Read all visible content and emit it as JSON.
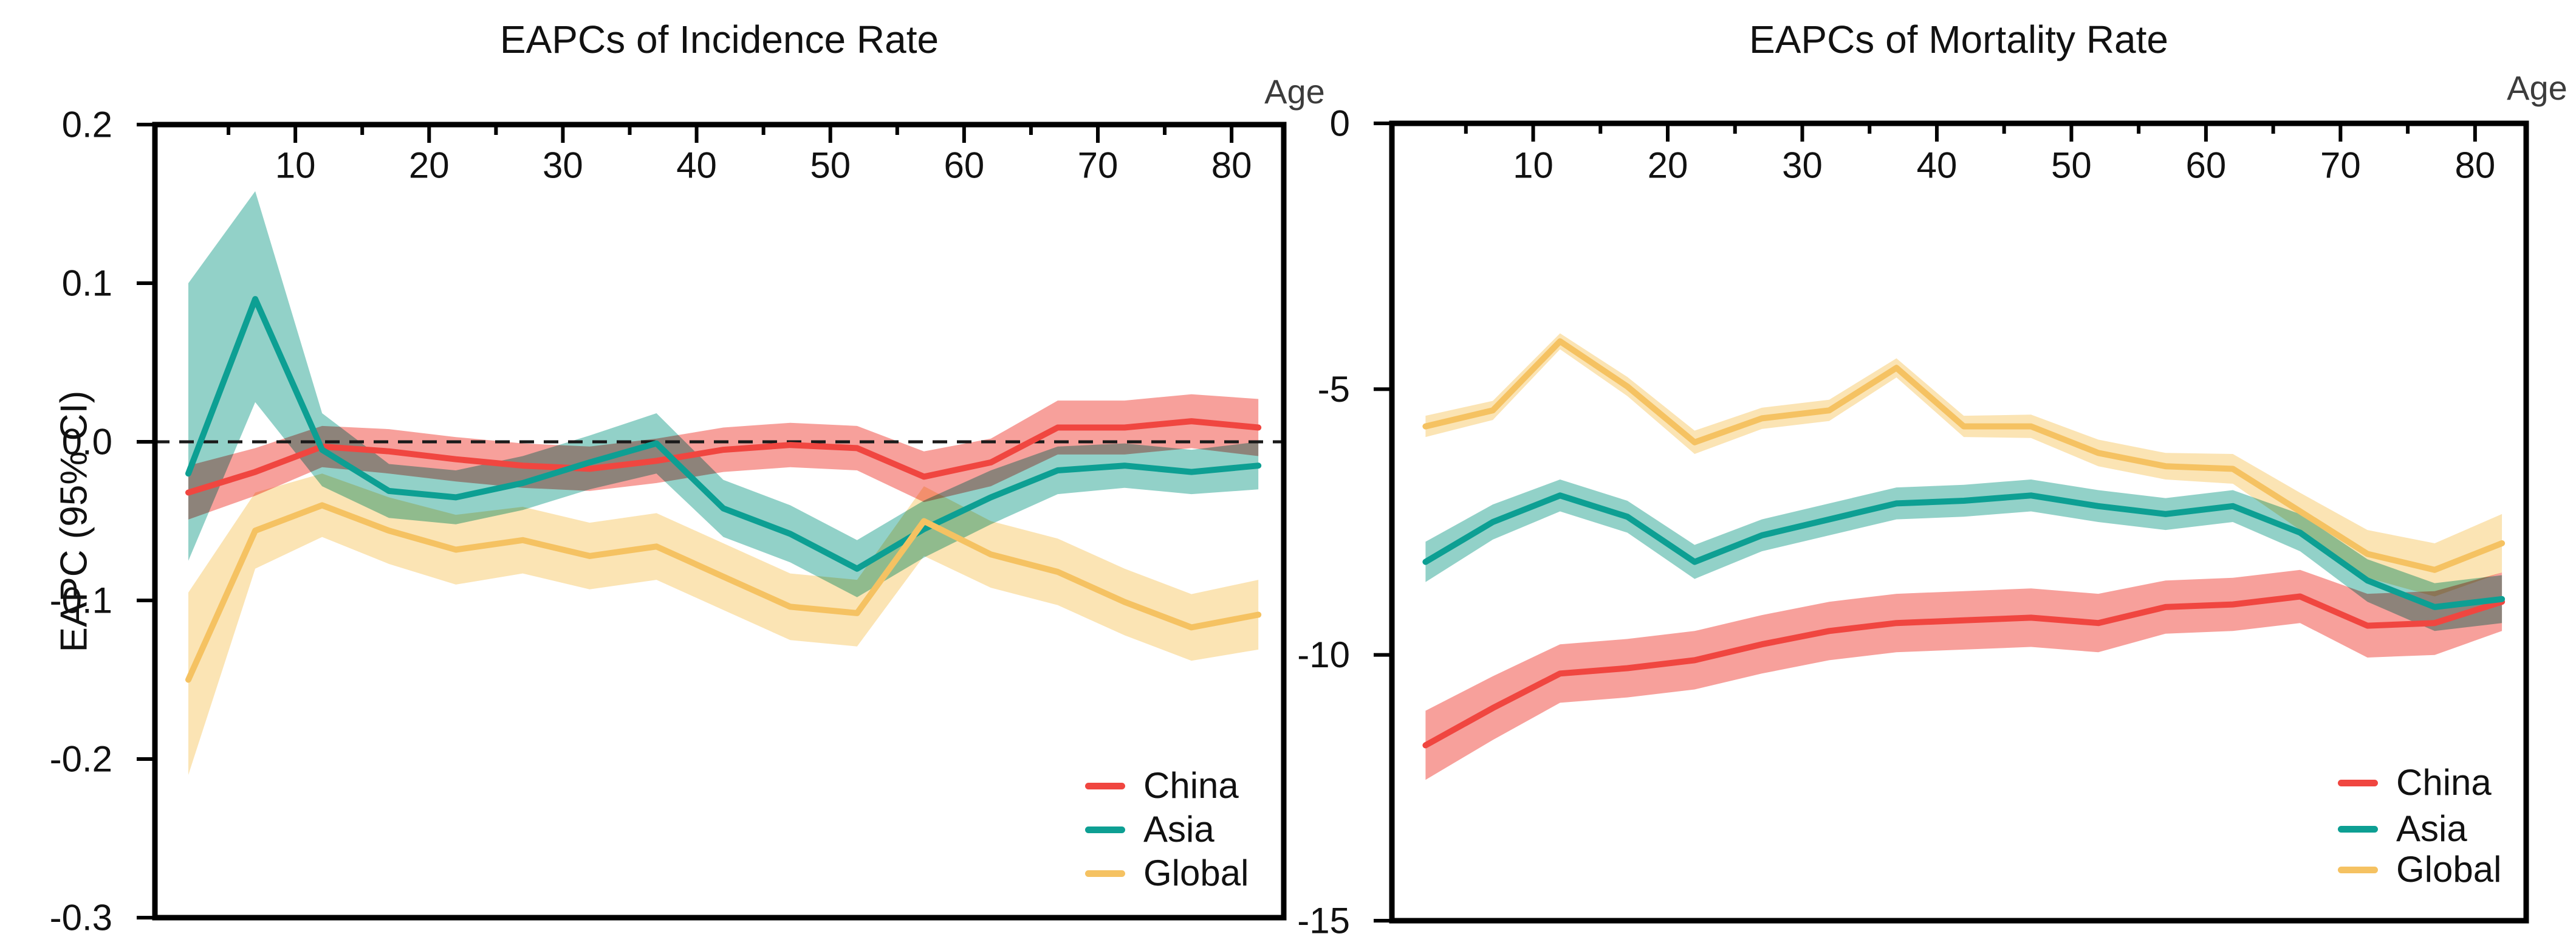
{
  "figure": {
    "background": "#ffffff",
    "axis_color": "#000000",
    "zero_line_color": "#1a1a1a"
  },
  "chart_data": [
    {
      "type": "line",
      "title": "EAPCs of Incidence Rate",
      "x_label": "Age",
      "y_label": "EAPC (95% CI)",
      "legend_position": "bottom-right-inside",
      "grid": false,
      "xlim": [
        -0.5,
        83.9
      ],
      "ylim": [
        -0.3,
        0.2
      ],
      "x_ticks_major": [
        10,
        20,
        30,
        40,
        50,
        60,
        70,
        80
      ],
      "x_ticks_minor": [
        5,
        15,
        25,
        35,
        45,
        55,
        65,
        75
      ],
      "y_ticks": [
        {
          "value": 0.2,
          "label": "0.2"
        },
        {
          "value": 0.1,
          "label": "0.1"
        },
        {
          "value": 0.0,
          "label": "0.0"
        },
        {
          "value": -0.1,
          "label": "-0.1"
        },
        {
          "value": -0.2,
          "label": "-0.2"
        },
        {
          "value": -0.3,
          "label": "-0.3"
        }
      ],
      "zero_dashed_line": true,
      "ages": [
        2,
        7,
        12,
        17,
        22,
        27,
        32,
        37,
        42,
        47,
        52,
        57,
        62,
        67,
        72,
        77,
        82
      ],
      "series": [
        {
          "name": "China",
          "color": "#F04640",
          "band_color": "#F7A09B",
          "values": [
            -0.032,
            -0.019,
            -0.003,
            -0.006,
            -0.011,
            -0.015,
            -0.017,
            -0.012,
            -0.005,
            -0.002,
            -0.004,
            -0.022,
            -0.013,
            0.009,
            0.009,
            0.013,
            0.009
          ],
          "ci_low": [
            -0.049,
            -0.034,
            -0.016,
            -0.02,
            -0.025,
            -0.029,
            -0.031,
            -0.026,
            -0.019,
            -0.016,
            -0.018,
            -0.038,
            -0.028,
            -0.008,
            -0.008,
            -0.004,
            -0.009
          ],
          "ci_high": [
            -0.015,
            -0.004,
            0.01,
            0.008,
            0.003,
            -0.001,
            -0.003,
            0.002,
            0.009,
            0.012,
            0.01,
            -0.006,
            0.002,
            0.026,
            0.026,
            0.03,
            0.027
          ]
        },
        {
          "name": "Asia",
          "color": "#0D9F93",
          "band_color": "#92D1C8",
          "values": [
            -0.02,
            0.09,
            -0.005,
            -0.031,
            -0.035,
            -0.026,
            -0.013,
            -0.001,
            -0.042,
            -0.058,
            -0.08,
            -0.055,
            -0.035,
            -0.018,
            -0.015,
            -0.019,
            -0.015
          ],
          "ci_low": [
            -0.075,
            0.025,
            -0.028,
            -0.048,
            -0.052,
            -0.043,
            -0.03,
            -0.02,
            -0.06,
            -0.076,
            -0.098,
            -0.073,
            -0.052,
            -0.033,
            -0.029,
            -0.033,
            -0.03
          ],
          "ci_high": [
            0.1,
            0.158,
            0.018,
            -0.014,
            -0.018,
            -0.009,
            0.004,
            0.018,
            -0.024,
            -0.04,
            -0.062,
            -0.037,
            -0.018,
            -0.003,
            -0.001,
            -0.005,
            0.0
          ]
        },
        {
          "name": "Global",
          "color": "#F5C262",
          "band_color": "#FBE4B4",
          "values": [
            -0.15,
            -0.056,
            -0.04,
            -0.056,
            -0.068,
            -0.062,
            -0.072,
            -0.066,
            -0.085,
            -0.104,
            -0.108,
            -0.05,
            -0.071,
            -0.082,
            -0.101,
            -0.117,
            -0.109
          ],
          "ci_low": [
            -0.21,
            -0.08,
            -0.06,
            -0.077,
            -0.09,
            -0.083,
            -0.093,
            -0.087,
            -0.106,
            -0.125,
            -0.129,
            -0.072,
            -0.092,
            -0.103,
            -0.122,
            -0.138,
            -0.131
          ],
          "ci_high": [
            -0.095,
            -0.032,
            -0.02,
            -0.035,
            -0.046,
            -0.041,
            -0.051,
            -0.045,
            -0.064,
            -0.083,
            -0.087,
            -0.028,
            -0.05,
            -0.061,
            -0.08,
            -0.096,
            -0.087
          ]
        }
      ]
    },
    {
      "type": "line",
      "title": "EAPCs of Mortality Rate",
      "x_label": "Age",
      "y_label": "",
      "legend_position": "bottom-right-inside",
      "grid": false,
      "xlim": [
        -0.5,
        83.8
      ],
      "ylim": [
        -15,
        0
      ],
      "x_ticks_major": [
        10,
        20,
        30,
        40,
        50,
        60,
        70,
        80
      ],
      "x_ticks_minor": [
        5,
        15,
        25,
        35,
        45,
        55,
        65,
        75
      ],
      "y_ticks": [
        {
          "value": 0,
          "label": "0"
        },
        {
          "value": -5,
          "label": "-5"
        },
        {
          "value": -10,
          "label": "-10"
        },
        {
          "value": -15,
          "label": "-15"
        }
      ],
      "zero_dashed_line": false,
      "ages": [
        2,
        7,
        12,
        17,
        22,
        27,
        32,
        37,
        42,
        47,
        52,
        57,
        62,
        67,
        72,
        77,
        82
      ],
      "series": [
        {
          "name": "China",
          "color": "#F04640",
          "band_color": "#F7A09B",
          "values": [
            -11.7,
            -11.0,
            -10.35,
            -10.25,
            -10.1,
            -9.8,
            -9.55,
            -9.4,
            -9.35,
            -9.3,
            -9.4,
            -9.1,
            -9.05,
            -8.9,
            -9.45,
            -9.4,
            -9.0
          ],
          "ci_low": [
            -12.35,
            -11.6,
            -10.9,
            -10.8,
            -10.65,
            -10.35,
            -10.1,
            -9.95,
            -9.9,
            -9.85,
            -9.95,
            -9.6,
            -9.55,
            -9.4,
            -10.05,
            -10.0,
            -9.55
          ],
          "ci_high": [
            -11.05,
            -10.4,
            -9.8,
            -9.7,
            -9.55,
            -9.25,
            -9.0,
            -8.85,
            -8.8,
            -8.75,
            -8.85,
            -8.6,
            -8.55,
            -8.4,
            -8.85,
            -8.8,
            -8.45
          ]
        },
        {
          "name": "Asia",
          "color": "#0D9F93",
          "band_color": "#92D1C8",
          "values": [
            -8.25,
            -7.5,
            -7.0,
            -7.4,
            -8.25,
            -7.75,
            -7.45,
            -7.15,
            -7.1,
            -7.0,
            -7.2,
            -7.35,
            -7.2,
            -7.7,
            -8.6,
            -9.1,
            -8.95
          ],
          "ci_low": [
            -8.63,
            -7.83,
            -7.3,
            -7.7,
            -8.57,
            -8.05,
            -7.75,
            -7.45,
            -7.4,
            -7.3,
            -7.5,
            -7.65,
            -7.5,
            -8.05,
            -9.0,
            -9.55,
            -9.4
          ],
          "ci_high": [
            -7.87,
            -7.17,
            -6.7,
            -7.1,
            -7.93,
            -7.45,
            -7.15,
            -6.85,
            -6.8,
            -6.7,
            -6.9,
            -7.05,
            -6.9,
            -7.35,
            -8.2,
            -8.65,
            -8.5
          ]
        },
        {
          "name": "Global",
          "color": "#F5C262",
          "band_color": "#FBE4B4",
          "values": [
            -5.7,
            -5.4,
            -4.1,
            -4.95,
            -6.0,
            -5.55,
            -5.4,
            -4.6,
            -5.7,
            -5.7,
            -6.2,
            -6.45,
            -6.5,
            -7.3,
            -8.1,
            -8.4,
            -7.9
          ],
          "ci_low": [
            -5.9,
            -5.58,
            -4.25,
            -5.13,
            -6.22,
            -5.75,
            -5.6,
            -4.78,
            -5.9,
            -5.92,
            -6.45,
            -6.7,
            -6.78,
            -7.65,
            -8.55,
            -8.9,
            -8.45
          ],
          "ci_high": [
            -5.5,
            -5.22,
            -3.95,
            -4.77,
            -5.78,
            -5.35,
            -5.2,
            -4.42,
            -5.5,
            -5.48,
            -5.95,
            -6.2,
            -6.22,
            -6.95,
            -7.65,
            -7.9,
            -7.35
          ]
        }
      ]
    }
  ]
}
